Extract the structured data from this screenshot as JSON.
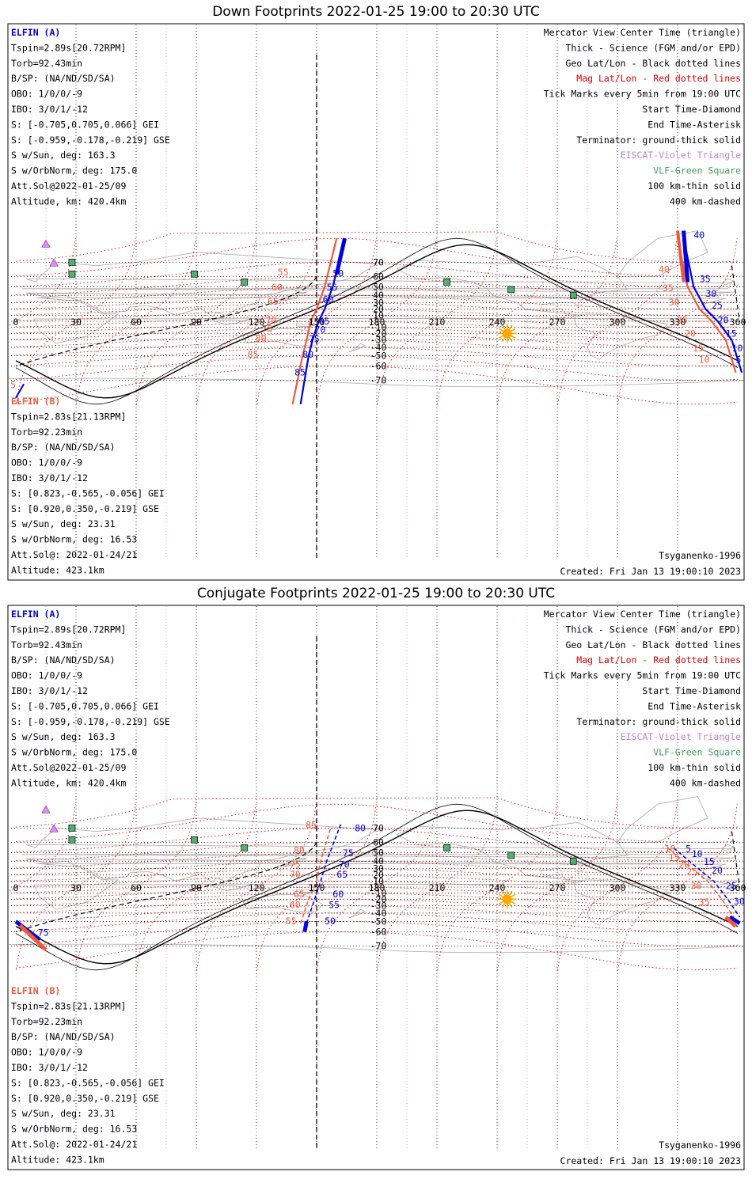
{
  "panels": [
    {
      "id": "down",
      "title": "Down Footprints 2022-01-25 19:00 to 20:30 UTC",
      "sc_a": {
        "name": "ELFIN (A)",
        "lines": [
          "Tspin=2.89s[20.72RPM]",
          "Torb=92.43min",
          "B/SP: (NA/ND/SD/SA)",
          "OBO: 1/0/0/-9",
          "IBO: 3/0/1/-12",
          "S: [-0.705,0.705,0.066] GEI",
          "S: [-0.959,-0.178,-0.219] GSE",
          "S w/Sun, deg: 163.3",
          "S w/OrbNorm, deg: 175.0",
          "Att.Sol@2022-01-25/09",
          "Altitude, km: 420.4km"
        ]
      },
      "sc_b": {
        "name": "ELFIN (B)",
        "lines": [
          "Tspin=2.83s[21.13RPM]",
          "Torb=92.23min",
          "B/SP: (NA/ND/SD/SA)",
          "OBO: 1/0/0/-9",
          "IBO: 3/0/1/-12",
          "S: [0.823,-0.565,-0.056] GEI",
          "S: [0.920,0.350,-0.219] GSE",
          "S w/Sun, deg: 23.31",
          "S w/OrbNorm, deg: 16.53",
          "Att.Sol@: 2022-01-24/21",
          "Altitude: 423.1km"
        ]
      },
      "legend": [
        {
          "text": "Mercator View Center Time (triangle)",
          "color": "#000000"
        },
        {
          "text": "Thick - Science (FGM and/or EPD)",
          "color": "#000000"
        },
        {
          "text": "Geo Lat/Lon - Black dotted lines",
          "color": "#000000"
        },
        {
          "text": "Mag Lat/Lon - Red dotted lines",
          "color": "#e00000"
        },
        {
          "text": "Tick Marks every 5min from 19:00 UTC",
          "color": "#000000"
        },
        {
          "text": "Start Time-Diamond",
          "color": "#000000"
        },
        {
          "text": "End Time-Asterisk",
          "color": "#000000"
        },
        {
          "text": "Terminator: ground-thick solid",
          "color": "#000000"
        },
        {
          "text": "EISCAT-Violet Triangle",
          "color": "#c080e0"
        },
        {
          "text": "VLF-Green Square",
          "color": "#40a060"
        },
        {
          "text": "100 km-thin solid",
          "color": "#000000"
        },
        {
          "text": "400 km-dashed",
          "color": "#000000"
        }
      ],
      "model": "Tsyganenko-1996",
      "created": "Created: Fri Jan 13 19:00:10 2023",
      "track_a_labels": [
        {
          "t": "5",
          "lon": 359,
          "lat": -57
        },
        {
          "t": "10",
          "lon": 357,
          "lat": -45
        },
        {
          "t": "15",
          "lon": 354,
          "lat": -25
        },
        {
          "t": "20",
          "lon": 350,
          "lat": -3
        },
        {
          "t": "25",
          "lon": 347,
          "lat": 21
        },
        {
          "t": "30",
          "lon": 344,
          "lat": 38
        },
        {
          "t": "35",
          "lon": 341,
          "lat": 55
        },
        {
          "t": "40",
          "lon": 338,
          "lat": 80
        },
        {
          "t": "50",
          "lon": 158,
          "lat": 60
        },
        {
          "t": "55",
          "lon": 155,
          "lat": 46
        },
        {
          "t": "60",
          "lon": 153,
          "lat": 30
        },
        {
          "t": "65",
          "lon": 151,
          "lat": -5
        },
        {
          "t": "70",
          "lon": 149,
          "lat": -19
        },
        {
          "t": "75",
          "lon": 146,
          "lat": -33
        },
        {
          "t": "80",
          "lon": 143,
          "lat": -52
        },
        {
          "t": "85",
          "lon": 139,
          "lat": -67
        }
      ],
      "track_b_labels": [
        {
          "t": "10",
          "lon": 346,
          "lat": -57
        },
        {
          "t": "15",
          "lon": 343,
          "lat": -45
        },
        {
          "t": "20",
          "lon": 339,
          "lat": -25
        },
        {
          "t": "25",
          "lon": 335,
          "lat": -3
        },
        {
          "t": "30",
          "lon": 331,
          "lat": 26
        },
        {
          "t": "35",
          "lon": 328,
          "lat": 45
        },
        {
          "t": "40",
          "lon": 326,
          "lat": 63
        },
        {
          "t": "55",
          "lon": 136,
          "lat": 61
        },
        {
          "t": "60",
          "lon": 133,
          "lat": 46
        },
        {
          "t": "65",
          "lon": 131,
          "lat": 27
        },
        {
          "t": "70",
          "lon": 130,
          "lat": -4
        },
        {
          "t": "75",
          "lon": 128,
          "lat": -18
        },
        {
          "t": "80",
          "lon": 125,
          "lat": -32
        },
        {
          "t": "85",
          "lon": 121,
          "lat": -52
        },
        {
          "t": "5",
          "lon": 0,
          "lat": -74
        }
      ]
    },
    {
      "id": "conj",
      "title": "Conjugate Footprints 2022-01-25 19:00 to 20:30 UTC",
      "sc_a": {
        "name": "ELFIN (A)",
        "lines": [
          "Tspin=2.89s[20.72RPM]",
          "Torb=92.43min",
          "B/SP: (NA/ND/SD/SA)",
          "OBO: 1/0/0/-9",
          "IBO: 3/0/1/-12",
          "S: [-0.705,0.705,0.066] GEI",
          "S: [-0.959,-0.178,-0.219] GSE",
          "S w/Sun, deg: 163.3",
          "S w/OrbNorm, deg: 175.0",
          "Att.Sol@2022-01-25/09",
          "Altitude, km: 420.4km"
        ]
      },
      "sc_b": {
        "name": "ELFIN (B)",
        "lines": [
          "Tspin=2.83s[21.13RPM]",
          "Torb=92.23min",
          "B/SP: (NA/ND/SD/SA)",
          "OBO: 1/0/0/-9",
          "IBO: 3/0/1/-12",
          "S: [0.823,-0.565,-0.056] GEI",
          "S: [0.920,0.350,-0.219] GSE",
          "S w/Sun, deg: 23.31",
          "S w/OrbNorm, deg: 16.53",
          "Att.Sol@: 2022-01-24/21",
          "Altitude: 423.1km"
        ]
      },
      "legend": [
        {
          "text": "Mercator View Center Time (triangle)",
          "color": "#000000"
        },
        {
          "text": "Thick - Science (FGM and/or EPD)",
          "color": "#000000"
        },
        {
          "text": "Geo Lat/Lon - Black dotted lines",
          "color": "#000000"
        },
        {
          "text": "Mag Lat/Lon - Red dotted lines",
          "color": "#e00000"
        },
        {
          "text": "Tick Marks every 5min from 19:00 UTC",
          "color": "#000000"
        },
        {
          "text": "Start Time-Diamond",
          "color": "#000000"
        },
        {
          "text": "End Time-Asterisk",
          "color": "#000000"
        },
        {
          "text": "Terminator: ground-thick solid",
          "color": "#000000"
        },
        {
          "text": "EISCAT-Violet Triangle",
          "color": "#c080e0"
        },
        {
          "text": "VLF-Green Square",
          "color": "#40a060"
        },
        {
          "text": "100 km-thin solid",
          "color": "#000000"
        },
        {
          "text": "400 km-dashed",
          "color": "#000000"
        }
      ],
      "model": "Tsyganenko-1996",
      "created": "Created: Fri Jan 13 19:00:10 2023",
      "track_a_labels": [
        {
          "t": "5",
          "lon": 334,
          "lat": 51
        },
        {
          "t": "10",
          "lon": 337,
          "lat": 45
        },
        {
          "t": "15",
          "lon": 343,
          "lat": 35
        },
        {
          "t": "20",
          "lon": 347,
          "lat": 22
        },
        {
          "t": "25",
          "lon": 354,
          "lat": -3
        },
        {
          "t": "30",
          "lon": 358,
          "lat": -28
        },
        {
          "t": "50",
          "lon": 154,
          "lat": -53
        },
        {
          "t": "55",
          "lon": 156,
          "lat": -33
        },
        {
          "t": "60",
          "lon": 158,
          "lat": -17
        },
        {
          "t": "65",
          "lon": 160,
          "lat": 16
        },
        {
          "t": "70",
          "lon": 161,
          "lat": 31
        },
        {
          "t": "75",
          "lon": 163,
          "lat": 46
        },
        {
          "t": "80",
          "lon": 169,
          "lat": 68
        },
        {
          "t": "75",
          "lon": 11,
          "lat": -63
        }
      ],
      "track_b_labels": [
        {
          "t": "10",
          "lon": 329,
          "lat": 51
        },
        {
          "t": "15",
          "lon": 331,
          "lat": 40
        },
        {
          "t": "20",
          "lon": 336,
          "lat": 31
        },
        {
          "t": "25",
          "lon": 340,
          "lat": 20
        },
        {
          "t": "30",
          "lon": 342,
          "lat": -3
        },
        {
          "t": "35",
          "lon": 346,
          "lat": -29
        },
        {
          "t": "55",
          "lon": 140,
          "lat": -53
        },
        {
          "t": "60",
          "lon": 142,
          "lat": -33
        },
        {
          "t": "65",
          "lon": 144,
          "lat": -17
        },
        {
          "t": "70",
          "lon": 142,
          "lat": 16
        },
        {
          "t": "75",
          "lon": 142,
          "lat": 31
        },
        {
          "t": "80",
          "lon": 144,
          "lat": 49
        },
        {
          "t": "85",
          "lon": 150,
          "lat": 70
        }
      ]
    }
  ],
  "lon_ticks": [
    "0",
    "30",
    "60",
    "90",
    "120",
    "150",
    "180",
    "210",
    "240",
    "270",
    "300",
    "330",
    "360"
  ],
  "lat_ticks": [
    "70",
    "60",
    "50",
    "40",
    "30",
    "20",
    "10",
    "-10",
    "-20",
    "-30",
    "-40",
    "-50",
    "-60",
    "-70"
  ],
  "colors": {
    "track_a": "#0000e0",
    "track_b": "#f05a3c",
    "mag_grid": "#e00000",
    "geo_grid": "#000000",
    "eiscat": "#c080e0",
    "vlf": "#40a060",
    "sun": "#ffa500",
    "land": "#a8a8a8"
  }
}
